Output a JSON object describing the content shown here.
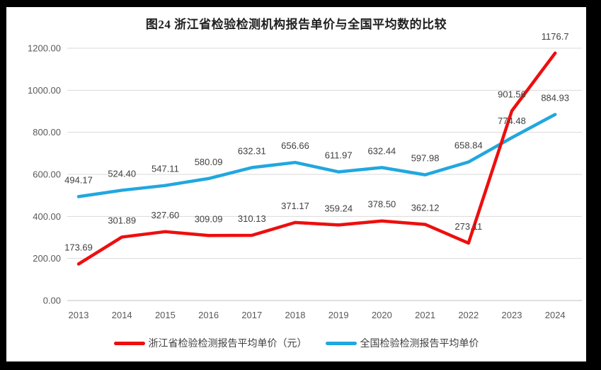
{
  "title": "图24  浙江省检验检测机构报告单价与全国平均数的比较",
  "frame": {
    "border_color": "#000000",
    "background": "#ffffff"
  },
  "chart_data": {
    "type": "line",
    "title": "图24  浙江省检验检测机构报告单价与全国平均数的比较",
    "categories": [
      "2013",
      "2014",
      "2015",
      "2016",
      "2017",
      "2018",
      "2019",
      "2020",
      "2021",
      "2022",
      "2023",
      "2024"
    ],
    "series": [
      {
        "name": "浙江省检验检测报告平均单价（元）",
        "color": "#ee0e0e",
        "values": [
          173.69,
          301.89,
          327.6,
          309.09,
          310.13,
          371.17,
          359.24,
          378.5,
          362.12,
          273.11,
          901.56,
          1176.7
        ],
        "labels": [
          "173.69",
          "301.89",
          "327.60",
          "309.09",
          "310.13",
          "371.17",
          "359.24",
          "378.50",
          "362.12",
          "273.11",
          "901.56",
          "1176.7"
        ]
      },
      {
        "name": "全国检验检测报告平均单价",
        "color": "#21a7df",
        "values": [
          494.17,
          524.4,
          547.11,
          580.09,
          632.31,
          656.66,
          611.97,
          632.44,
          597.98,
          658.84,
          774.48,
          884.93
        ],
        "labels": [
          "494.17",
          "524.40",
          "547.11",
          "580.09",
          "632.31",
          "656.66",
          "611.97",
          "632.44",
          "597.98",
          "658.84",
          "774.48",
          "884.93"
        ]
      }
    ],
    "xlabel": "",
    "ylabel": "",
    "ylim": [
      0,
      1200
    ],
    "ytick_step": 200,
    "ytick_labels": [
      "0.00",
      "200.00",
      "400.00",
      "600.00",
      "800.00",
      "1000.00",
      "1200.00"
    ],
    "grid": true,
    "legend_position": "bottom",
    "colors": {
      "gridline": "#d9d9d9",
      "axis_line": "#bfbfbf",
      "tick_label": "#595959",
      "data_label": "#404040"
    }
  }
}
